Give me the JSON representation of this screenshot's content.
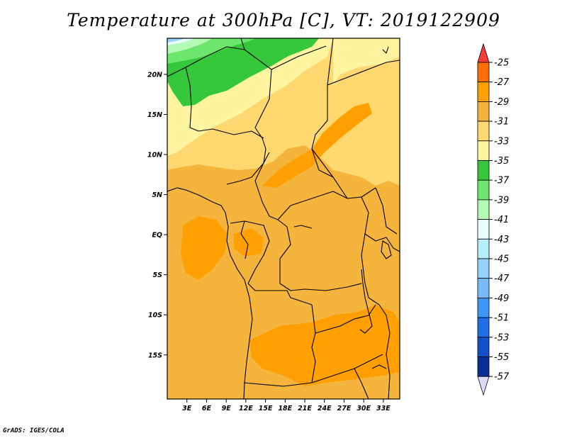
{
  "title": "Temperature at 300hPa [C], VT: 2019122909",
  "footer": "GrADS: IGES/COLA",
  "chart_data": {
    "type": "heatmap",
    "variable": "Temperature at 300hPa",
    "units": "C",
    "valid_time": "2019122909",
    "lon_range": [
      0,
      35.5
    ],
    "lat_range": [
      -20.5,
      24.5
    ],
    "x_ticks": [
      "3E",
      "6E",
      "9E",
      "12E",
      "15E",
      "18E",
      "21E",
      "24E",
      "27E",
      "30E",
      "33E"
    ],
    "y_ticks": [
      "20N",
      "15N",
      "10N",
      "5N",
      "EQ",
      "5S",
      "10S",
      "15S"
    ],
    "colorbar": {
      "labels": [
        "-25",
        "-27",
        "-29",
        "-31",
        "-33",
        "-35",
        "-37",
        "-39",
        "-41",
        "-43",
        "-45",
        "-47",
        "-49",
        "-51",
        "-53",
        "-55",
        "-57"
      ],
      "colors": [
        "#fa3c3c",
        "#ff6e00",
        "#ffa000",
        "#f5b43c",
        "#ffd970",
        "#fff5a0",
        "#35c83b",
        "#6ce66c",
        "#b4fab4",
        "#e6ffff",
        "#b4f0fa",
        "#96d2fa",
        "#78b9fa",
        "#3c96f5",
        "#1e6ee6",
        "#1450c8",
        "#0a2d96",
        "#000064",
        "#dcdcfa"
      ]
    }
  }
}
